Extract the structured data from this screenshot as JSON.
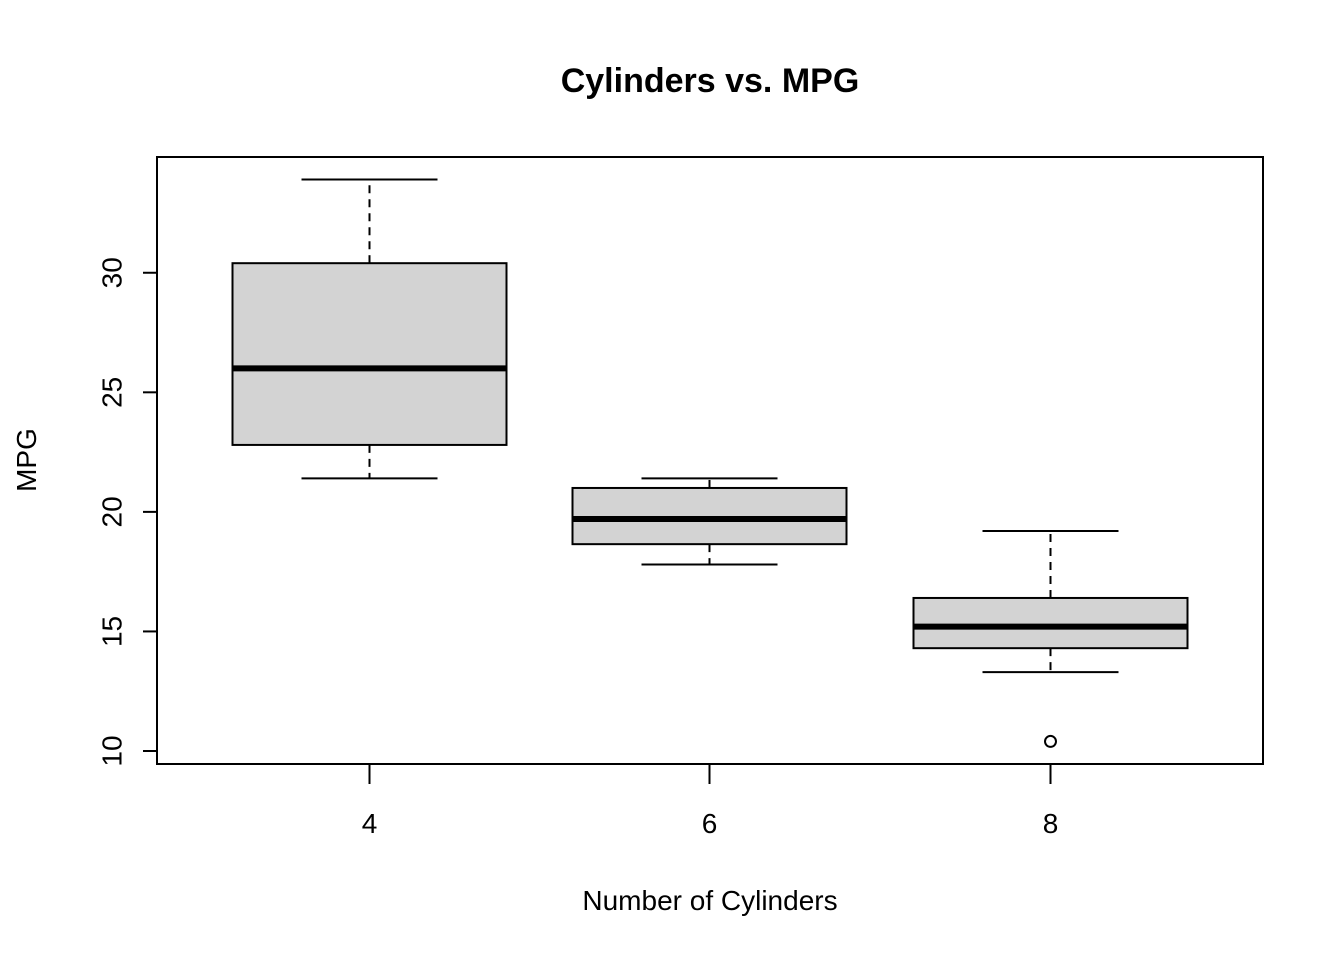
{
  "chart_data": {
    "type": "boxplot",
    "title": "Cylinders vs. MPG",
    "xlabel": "Number of Cylinders",
    "ylabel": "MPG",
    "categories": [
      "4",
      "6",
      "8"
    ],
    "yticks": [
      10,
      15,
      20,
      25,
      30
    ],
    "ylim": [
      9.5,
      35
    ],
    "boxes": [
      {
        "category": "4",
        "min": 21.4,
        "q1": 22.8,
        "median": 26.0,
        "q3": 30.4,
        "max": 33.9,
        "outliers": []
      },
      {
        "category": "6",
        "min": 17.8,
        "q1": 18.65,
        "median": 19.7,
        "q3": 21.0,
        "max": 21.4,
        "outliers": []
      },
      {
        "category": "8",
        "min": 13.3,
        "q1": 14.3,
        "median": 15.2,
        "q3": 16.4,
        "max": 19.2,
        "outliers": [
          10.4
        ]
      }
    ],
    "box_fill": "#d3d3d3",
    "line_color": "#000000",
    "grid": false,
    "legend": "none"
  }
}
